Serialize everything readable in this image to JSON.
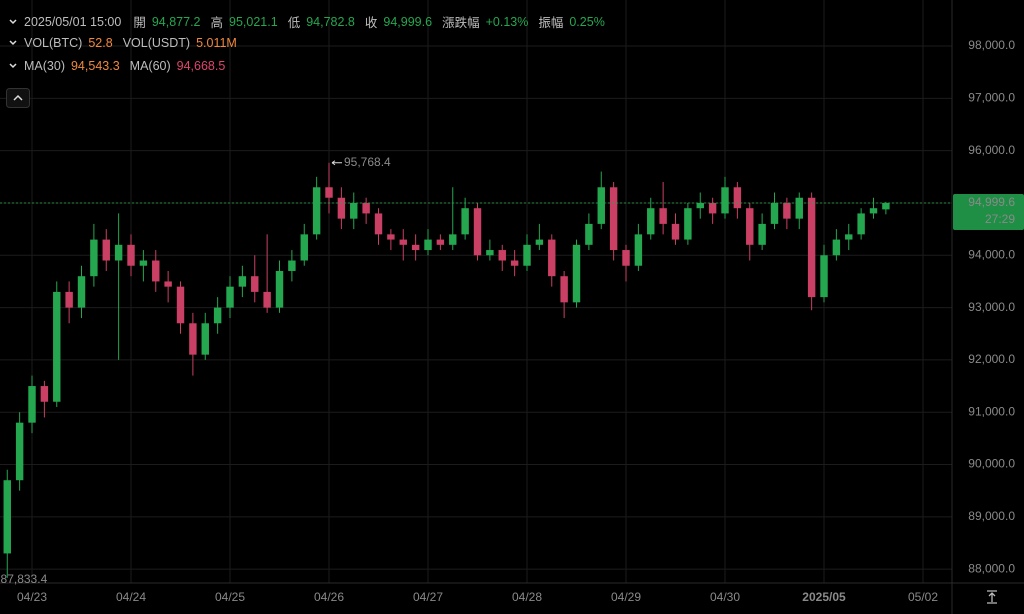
{
  "header": {
    "time": "2025/05/01 15:00",
    "ohlc": [
      {
        "label": "開",
        "value": "94,877.2"
      },
      {
        "label": "高",
        "value": "95,021.1"
      },
      {
        "label": "低",
        "value": "94,782.8"
      },
      {
        "label": "收",
        "value": "94,999.6"
      },
      {
        "label": "漲跌幅",
        "value": "+0.13%"
      },
      {
        "label": "振幅",
        "value": "0.25%"
      }
    ],
    "volume": [
      {
        "label": "VOL(BTC)",
        "value": "52.8"
      },
      {
        "label": "VOL(USDT)",
        "value": "5.011M"
      }
    ],
    "ma": [
      {
        "label": "MA(30)",
        "value": "94,543.3"
      },
      {
        "label": "MA(60)",
        "value": "94,668.5"
      }
    ]
  },
  "chart_data": {
    "type": "candlestick",
    "x": [
      -6,
      -3,
      0,
      3,
      6,
      9,
      12,
      15,
      18,
      21,
      24,
      27,
      30,
      33,
      36,
      39,
      42,
      45,
      48,
      51,
      54,
      57,
      60,
      63,
      66,
      69,
      72,
      75,
      78,
      81,
      84,
      87,
      90,
      93,
      96,
      99,
      102,
      105,
      108,
      111,
      114,
      117,
      120,
      123,
      126,
      129,
      132,
      135,
      138,
      141,
      144,
      147,
      150,
      153,
      156,
      159,
      162,
      165,
      168,
      171,
      174,
      177,
      180,
      183,
      186,
      189,
      192,
      195,
      198,
      201,
      204,
      207
    ],
    "open": [
      88300,
      89700,
      90800,
      91500,
      91200,
      93300,
      93000,
      93600,
      94300,
      93900,
      94200,
      93800,
      93900,
      93500,
      93400,
      92700,
      92100,
      92700,
      93000,
      93400,
      93600,
      93300,
      93000,
      93700,
      93900,
      94400,
      95300,
      95100,
      94700,
      95000,
      94800,
      94400,
      94300,
      94200,
      94100,
      94300,
      94200,
      94400,
      94900,
      94000,
      94100,
      93900,
      93800,
      94200,
      94300,
      93600,
      93100,
      94200,
      94600,
      95300,
      94100,
      93800,
      94400,
      94900,
      94600,
      94300,
      94900,
      95000,
      94800,
      95300,
      94900,
      94200,
      94600,
      95000,
      94700,
      95100,
      93200,
      94000,
      94300,
      94400,
      94800,
      94877.2
    ],
    "high": [
      89900,
      91000,
      91700,
      91600,
      93500,
      93500,
      93800,
      94600,
      94500,
      94800,
      94400,
      94100,
      94100,
      93700,
      93500,
      92900,
      92900,
      93200,
      93600,
      93800,
      94000,
      94400,
      93900,
      94100,
      94600,
      95500,
      95768.4,
      95300,
      95200,
      95100,
      94900,
      94500,
      94500,
      94400,
      94500,
      94400,
      95300,
      95100,
      95000,
      94300,
      94200,
      94100,
      94400,
      94600,
      94400,
      93700,
      94300,
      94800,
      95600,
      95400,
      94200,
      94600,
      95100,
      95400,
      94800,
      95000,
      95200,
      95100,
      95500,
      95400,
      95000,
      94800,
      95200,
      95100,
      95200,
      95200,
      94200,
      94500,
      94600,
      94900,
      95100,
      95021.1
    ],
    "low": [
      87833.4,
      89500,
      90600,
      90900,
      91100,
      92700,
      92800,
      93400,
      93700,
      92000,
      93600,
      93500,
      93300,
      93100,
      92500,
      91700,
      92000,
      92500,
      92800,
      93200,
      93100,
      92900,
      92900,
      93500,
      93800,
      94300,
      94800,
      94500,
      94500,
      94600,
      94200,
      94100,
      93900,
      93900,
      94000,
      94100,
      94100,
      94300,
      93900,
      93900,
      93700,
      93600,
      93700,
      94100,
      93400,
      92800,
      93000,
      94100,
      94500,
      93900,
      93500,
      93700,
      94300,
      94400,
      94200,
      94200,
      94700,
      94600,
      94700,
      94700,
      93900,
      94100,
      94500,
      94500,
      94500,
      92950,
      93100,
      93900,
      94100,
      94300,
      94700,
      94782.8
    ],
    "close": [
      89700,
      90800,
      91500,
      91200,
      93300,
      93000,
      93600,
      94300,
      93900,
      94200,
      93800,
      93900,
      93500,
      93400,
      92700,
      92100,
      92700,
      93000,
      93400,
      93600,
      93300,
      93000,
      93700,
      93900,
      94400,
      95300,
      95100,
      94700,
      95000,
      94800,
      94400,
      94300,
      94200,
      94100,
      94300,
      94200,
      94400,
      94900,
      94000,
      94100,
      93900,
      93800,
      94200,
      94300,
      93600,
      93100,
      94200,
      94600,
      95300,
      94100,
      93800,
      94400,
      94900,
      94600,
      94300,
      94900,
      95000,
      94800,
      95300,
      94900,
      94200,
      94600,
      95000,
      94700,
      95100,
      93200,
      94000,
      94300,
      94400,
      94800,
      94900,
      94999.6
    ],
    "up_color": "#25a750",
    "down_color": "#ca3f64",
    "xlim": [
      -7.76,
      223.03
    ],
    "xticks": [
      {
        "value": 0,
        "label": "04/23"
      },
      {
        "value": 24,
        "label": "04/24"
      },
      {
        "value": 48,
        "label": "04/25"
      },
      {
        "value": 72,
        "label": "04/26"
      },
      {
        "value": 96,
        "label": "04/27"
      },
      {
        "value": 120,
        "label": "04/28"
      },
      {
        "value": 144,
        "label": "04/29"
      },
      {
        "value": 168,
        "label": "04/30"
      },
      {
        "value": 192,
        "label": "2025/05"
      },
      {
        "value": 216,
        "label": "05/02"
      }
    ],
    "ylim": [
      87735,
      98880
    ],
    "yticks": [
      {
        "value": 88000,
        "label": "88,000.0"
      },
      {
        "value": 89000,
        "label": "89,000.0"
      },
      {
        "value": 90000,
        "label": "90,000.0"
      },
      {
        "value": 91000,
        "label": "91,000.0"
      },
      {
        "value": 92000,
        "label": "92,000.0"
      },
      {
        "value": 93000,
        "label": "93,000.0"
      },
      {
        "value": 94000,
        "label": "94,000.0"
      },
      {
        "value": 95000,
        "label": "95,000.0"
      },
      {
        "value": 96000,
        "label": "96,000.0"
      },
      {
        "value": 97000,
        "label": "97,000.0"
      },
      {
        "value": 98000,
        "label": "98,000.0"
      }
    ],
    "grid": true,
    "max_label": "95,768.4",
    "min_label": "87,833.4",
    "last_price_label": "94,999.6",
    "countdown": "27:29"
  }
}
